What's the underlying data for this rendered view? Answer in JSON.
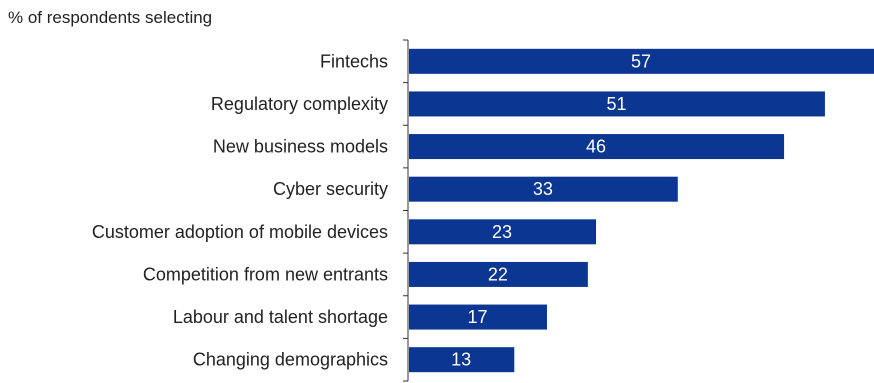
{
  "chart_data": {
    "type": "bar",
    "orientation": "horizontal",
    "title": "% of respondents selecting",
    "xlabel": "",
    "ylabel": "",
    "categories": [
      "Fintechs",
      "Regulatory complexity",
      "New business models",
      "Cyber security",
      "Customer adoption of mobile devices",
      "Competition from new entrants",
      "Labour and talent shortage",
      "Changing demographics"
    ],
    "values": [
      57,
      51,
      46,
      33,
      23,
      22,
      17,
      13
    ],
    "xlim": [
      0,
      57
    ],
    "grid": false,
    "legend": "none",
    "bar_color": "#0b3692",
    "value_label_color": "#ffffff"
  }
}
